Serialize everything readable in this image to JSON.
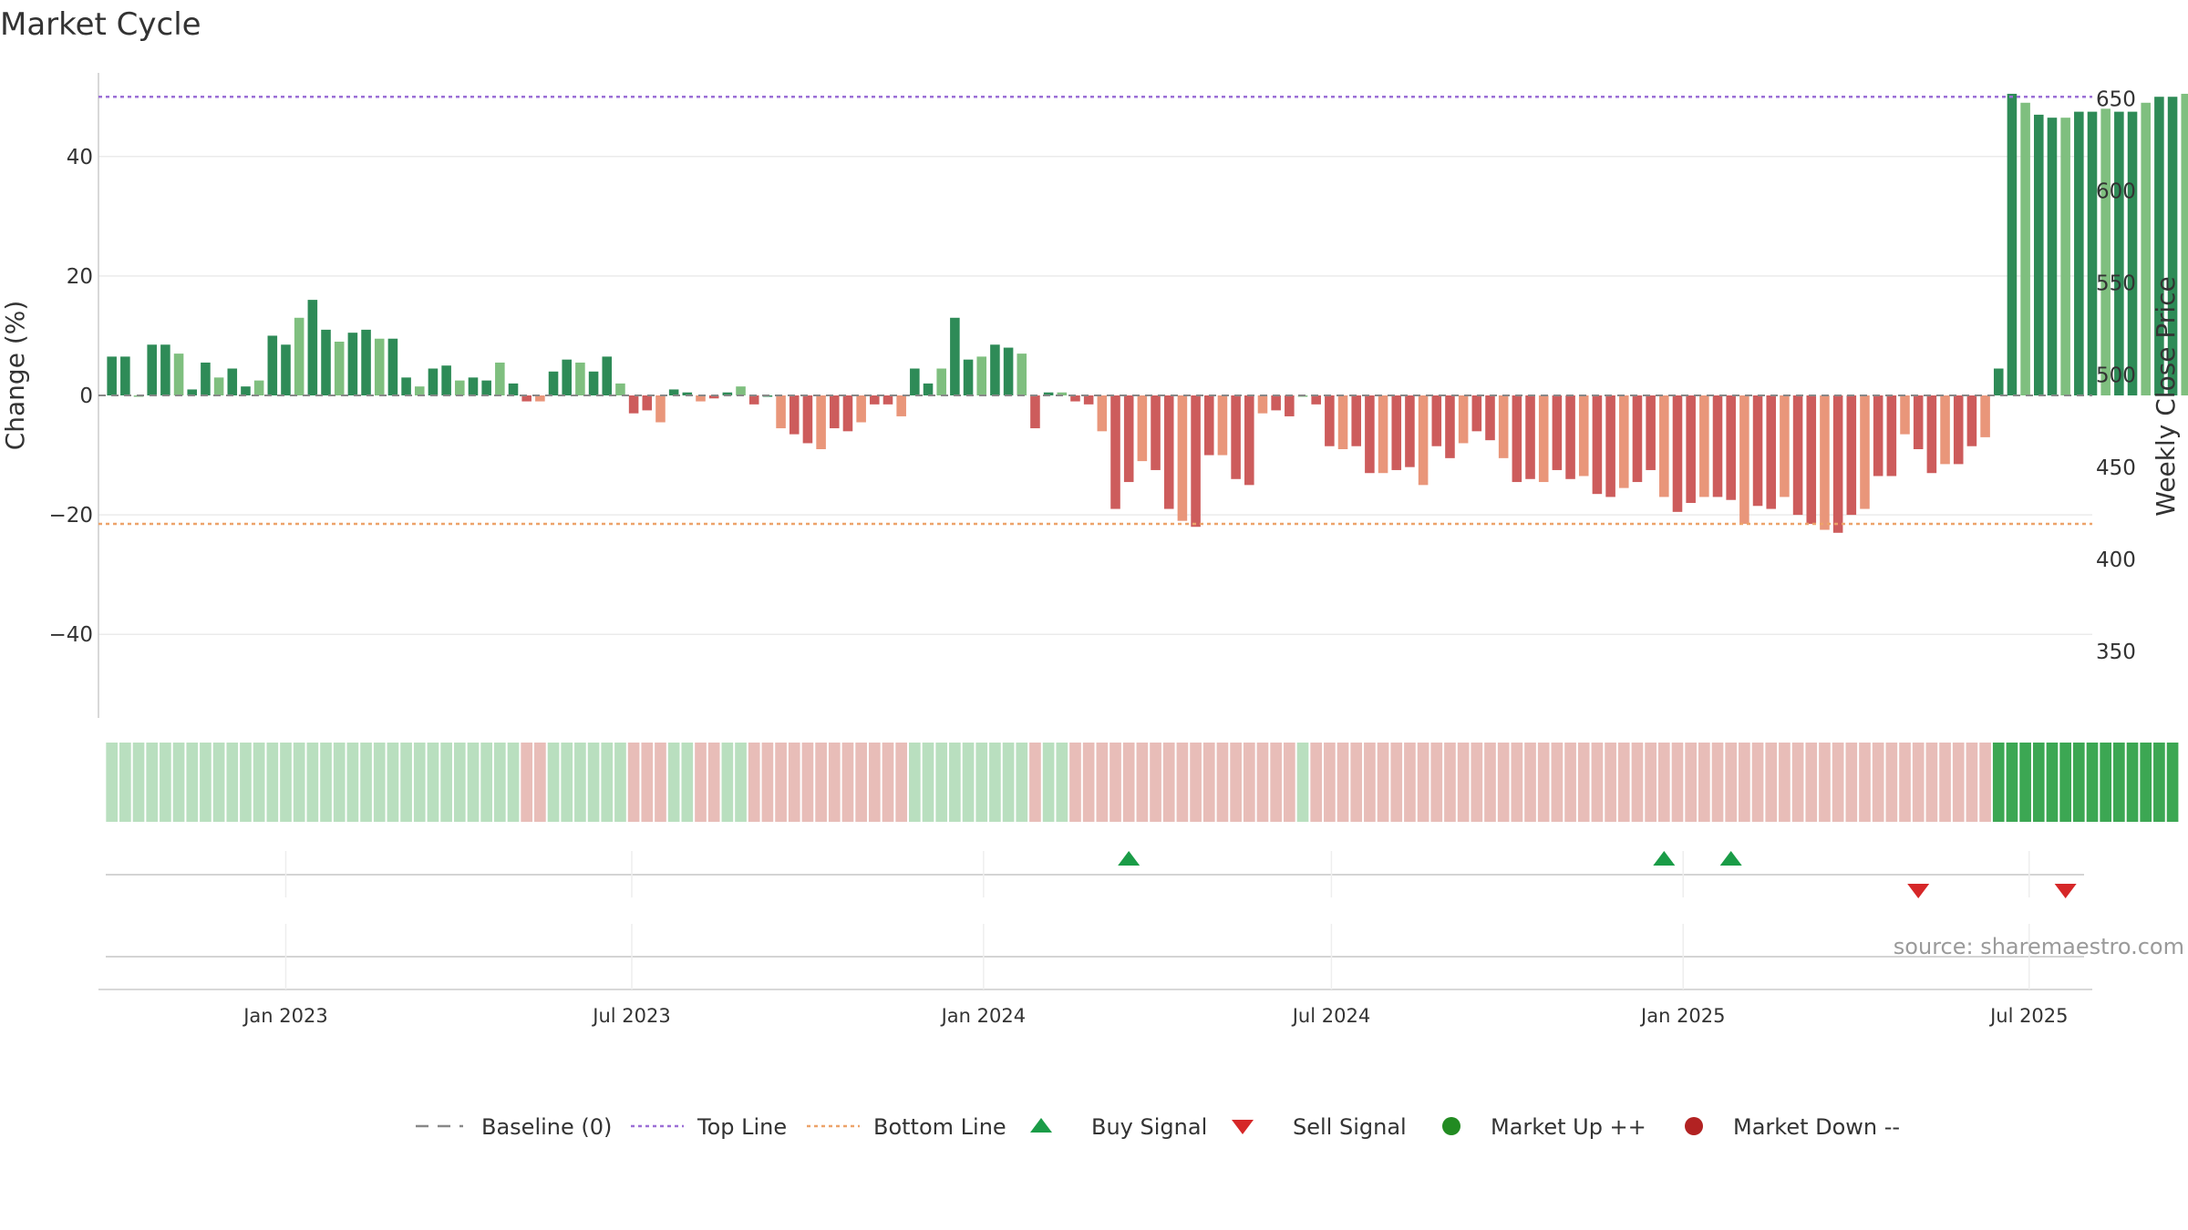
{
  "chart_data": {
    "type": "bar",
    "title": "Market Cycle",
    "ylabel": "Change (%)",
    "y2label": "Weekly Close Price",
    "ylim": [
      -54,
      54
    ],
    "y2lim": [
      314,
      664
    ],
    "yticks": [
      40,
      20,
      0,
      -20,
      -40
    ],
    "yticklabels": [
      "40",
      "20",
      "0",
      "−20",
      "−40"
    ],
    "y2ticks": [
      650,
      600,
      550,
      500,
      450,
      400,
      350
    ],
    "top_line": 50,
    "bottom_line": -21.5,
    "x_start": "2022-09-25",
    "x_end": "2025-08-03",
    "x_ticks": [
      {
        "date": "2023-01-01",
        "label": "Jan 2023"
      },
      {
        "date": "2023-07-01",
        "label": "Jul 2023"
      },
      {
        "date": "2024-01-01",
        "label": "Jan 2024"
      },
      {
        "date": "2024-07-01",
        "label": "Jul 2024"
      },
      {
        "date": "2025-01-01",
        "label": "Jan 2025"
      },
      {
        "date": "2025-07-01",
        "label": "Jul 2025"
      }
    ],
    "first_week": "2022-10-02",
    "change_pct": [
      6.5,
      6.5,
      0,
      8.5,
      8.5,
      7,
      1,
      5.5,
      3,
      4.5,
      1.5,
      2.5,
      10,
      8.5,
      13,
      16,
      11,
      9,
      10.5,
      11,
      9.5,
      9.5,
      3,
      1.5,
      4.5,
      5,
      2.5,
      3,
      2.5,
      5.5,
      2,
      -1,
      -1,
      4,
      6,
      5.5,
      4,
      6.5,
      2,
      -3,
      -2.5,
      -4.5,
      1,
      0.5,
      -1,
      -0.5,
      0.5,
      1.5,
      -1.5,
      0,
      -5.5,
      -6.5,
      -8,
      -9,
      -5.5,
      -6,
      -4.5,
      -1.5,
      -1.5,
      -3.5,
      4.5,
      2,
      4.5,
      13,
      6,
      6.5,
      8.5,
      8,
      7,
      -5.5,
      0.5,
      0.5,
      -1,
      -1.5,
      -6,
      -19,
      -14.5,
      -11,
      -12.5,
      -19,
      -21,
      -22,
      -10,
      -10,
      -14,
      -15,
      -3,
      -2.5,
      -3.5,
      0,
      -1.5,
      -8.5,
      -9,
      -8.5,
      -13,
      -13,
      -12.5,
      -12,
      -15,
      -8.5,
      -10.5,
      -8,
      -6,
      -7.5,
      -10.5,
      -14.5,
      -14,
      -14.5,
      -12.5,
      -14,
      -13.5,
      -16.5,
      -17,
      -15.5,
      -14.5,
      -12.5,
      -17,
      -19.5,
      -18,
      -17,
      -17,
      -17.5,
      -21.5,
      -18.5,
      -19,
      -17,
      -20,
      -21.5,
      -22.5,
      -23,
      -20,
      -19,
      -13.5,
      -13.5,
      -6.5,
      -9,
      -13,
      -11.5,
      -11.5,
      -8.5,
      -7,
      4.5,
      50.5,
      49,
      47,
      46.5,
      46.5,
      47.5,
      47.5,
      48,
      47.5,
      47.5,
      49,
      50,
      50,
      50.5
    ],
    "regime_strip": [
      "ug",
      "ug",
      "ug",
      "ug",
      "ug",
      "ug",
      "ug",
      "ug",
      "ug",
      "ug",
      "ug",
      "ug",
      "ug",
      "ug",
      "ug",
      "ug",
      "ug",
      "ug",
      "ug",
      "ug",
      "ug",
      "ug",
      "ug",
      "ug",
      "ug",
      "ug",
      "ug",
      "ug",
      "ug",
      "ug",
      "ug",
      "dr",
      "dr",
      "ug",
      "ug",
      "ug",
      "ug",
      "ug",
      "ug",
      "dr",
      "dr",
      "dr",
      "ug",
      "ug",
      "dr",
      "dr",
      "ug",
      "ug",
      "dr",
      "dr",
      "dr",
      "dr",
      "dr",
      "dr",
      "dr",
      "dr",
      "dr",
      "dr",
      "dr",
      "dr",
      "ug",
      "ug",
      "ug",
      "ug",
      "ug",
      "ug",
      "ug",
      "ug",
      "ug",
      "dr",
      "ug",
      "ug",
      "dr",
      "dr",
      "dr",
      "dr",
      "dr",
      "dr",
      "dr",
      "dr",
      "dr",
      "dr",
      "dr",
      "dr",
      "dr",
      "dr",
      "dr",
      "dr",
      "dr",
      "ug",
      "dr",
      "dr",
      "dr",
      "dr",
      "dr",
      "dr",
      "dr",
      "dr",
      "dr",
      "dr",
      "dr",
      "dr",
      "dr",
      "dr",
      "dr",
      "dr",
      "dr",
      "dr",
      "dr",
      "dr",
      "dr",
      "dr",
      "dr",
      "dr",
      "dr",
      "dr",
      "dr",
      "dr",
      "dr",
      "dr",
      "dr",
      "dr",
      "dr",
      "dr",
      "dr",
      "dr",
      "dr",
      "dr",
      "dr",
      "dr",
      "dr",
      "dr",
      "dr",
      "dr",
      "dr",
      "dr",
      "dr",
      "dr",
      "dr",
      "dr",
      "dr",
      "g",
      "g",
      "g",
      "g",
      "g",
      "g",
      "g",
      "g",
      "g",
      "g",
      "g",
      "g",
      "g",
      "g"
    ],
    "buy_signals": [
      "2024-03-17",
      "2024-12-22",
      "2025-01-26"
    ],
    "sell_signals": [
      "2025-05-04",
      "2025-07-20"
    ],
    "market_up_markers": [],
    "market_down_markers": [],
    "legend_position": "bottom-center",
    "legend": [
      {
        "label": "Baseline (0)",
        "kind": "dash-line",
        "color": "#888888"
      },
      {
        "label": "Top Line",
        "kind": "dot-line",
        "color": "#9b6fd6"
      },
      {
        "label": "Bottom Line",
        "kind": "dot-line",
        "color": "#eda36a"
      },
      {
        "label": "Buy Signal",
        "kind": "triangle-up",
        "color": "#1a9c47"
      },
      {
        "label": "Sell Signal",
        "kind": "triangle-down",
        "color": "#d62728"
      },
      {
        "label": "Market Up ++",
        "kind": "circle",
        "color": "#228b22"
      },
      {
        "label": "Market Down --",
        "kind": "circle",
        "color": "#b22222"
      }
    ],
    "source": "source: sharemaestro.com",
    "grid": true,
    "colors": {
      "pos_strong": "#2e8b57",
      "pos_light": "#7fbf7f",
      "neg_strong": "#cd5c5c",
      "neg_light": "#e9967a",
      "strip_green": "#3ca753",
      "strip_green_pale": "#b9dfbf",
      "strip_red_pale": "#e8bdb8",
      "top_line": "#9b6fd6",
      "bottom_line": "#eda36a",
      "buy": "#1a9c47",
      "sell": "#d62728"
    }
  }
}
